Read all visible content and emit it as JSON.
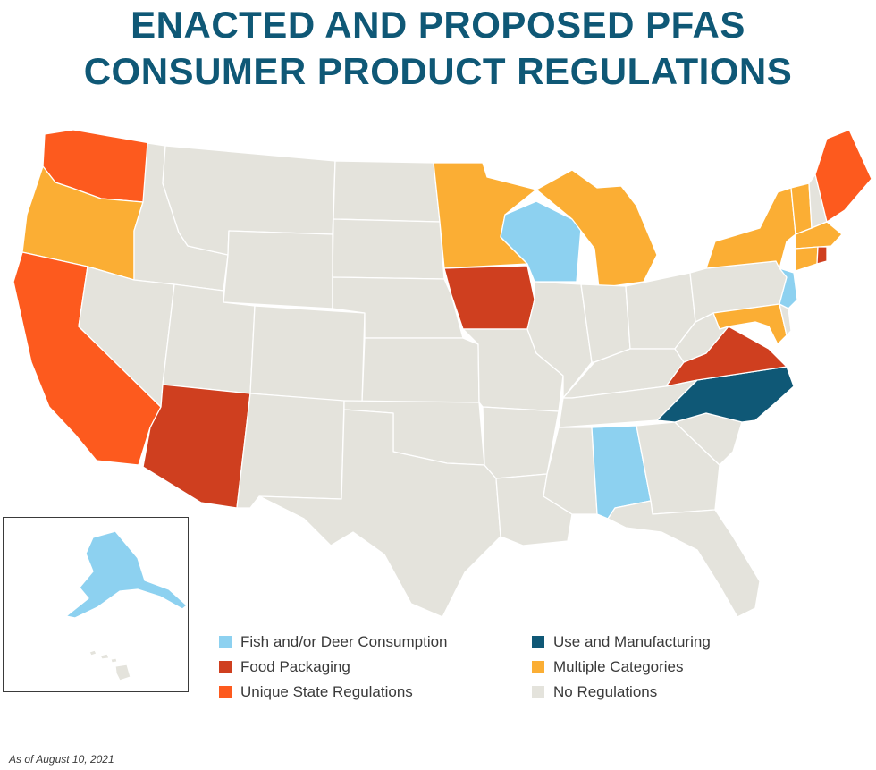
{
  "title": {
    "line1": "ENACTED AND PROPOSED PFAS",
    "line2": "CONSUMER PRODUCT REGULATIONS"
  },
  "colors": {
    "fish_deer": "#8dd1f0",
    "food_packaging": "#cf3f1f",
    "unique_state": "#fd5a1e",
    "use_manufacturing": "#0f5876",
    "multiple": "#fbae34",
    "none": "#e4e3dc"
  },
  "legend": {
    "fish_deer": "Fish and/or Deer Consumption",
    "food_packaging": "Food Packaging",
    "unique_state": "Unique State Regulations",
    "use_manufacturing": "Use and Manufacturing",
    "multiple": "Multiple Categories",
    "none": "No Regulations"
  },
  "states": {
    "WA": "unique_state",
    "OR": "multiple",
    "CA": "unique_state",
    "AZ": "food_packaging",
    "MN": "multiple",
    "WI": "fish_deer",
    "IA": "food_packaging",
    "MI": "multiple",
    "NY": "multiple",
    "VT": "multiple",
    "ME": "unique_state",
    "MA": "multiple",
    "CT": "multiple",
    "RI": "food_packaging",
    "NJ": "fish_deer",
    "MD": "multiple",
    "VA": "food_packaging",
    "NC": "use_manufacturing",
    "AL": "fish_deer",
    "AK": "fish_deer",
    "ID": "none",
    "MT": "none",
    "WY": "none",
    "NV": "none",
    "UT": "none",
    "CO": "none",
    "NM": "none",
    "ND": "none",
    "SD": "none",
    "NE": "none",
    "KS": "none",
    "OK": "none",
    "TX": "none",
    "MO": "none",
    "AR": "none",
    "LA": "none",
    "IL": "none",
    "IN": "none",
    "OH": "none",
    "KY": "none",
    "TN": "none",
    "MS": "none",
    "GA": "none",
    "FL": "none",
    "SC": "none",
    "WV": "none",
    "PA": "none",
    "NH": "none",
    "DE": "none",
    "HI": "none"
  },
  "footnote": "As of August 10, 2021"
}
